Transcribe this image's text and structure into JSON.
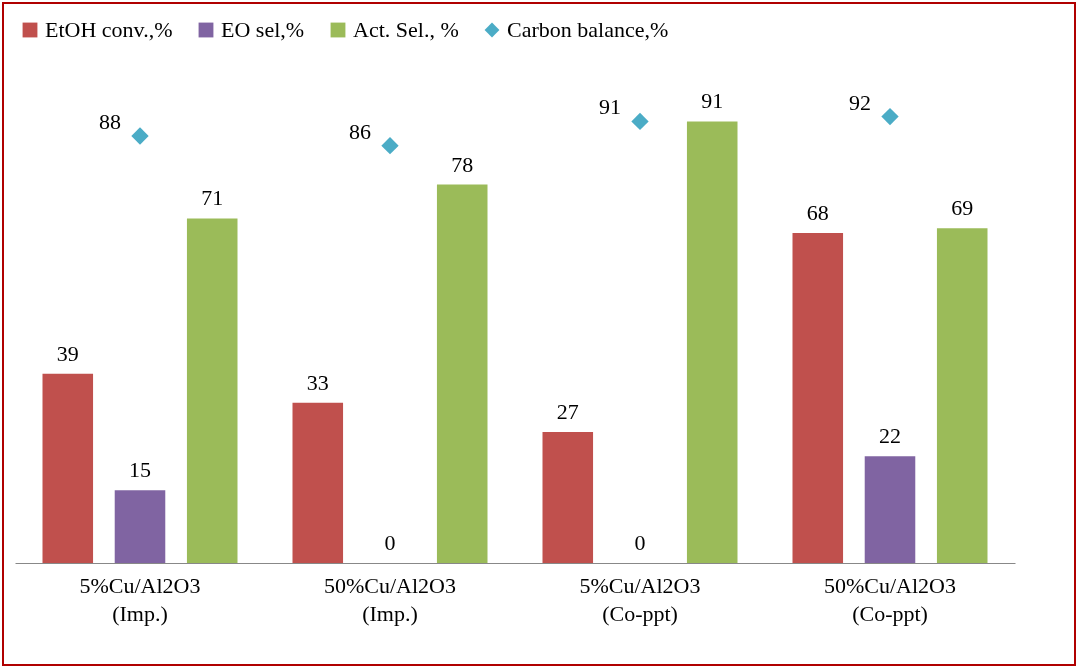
{
  "chart_data": {
    "type": "bar",
    "categories": [
      "5%Cu/Al2O3\n(Imp.)",
      "50%Cu/Al2O3\n(Imp.)",
      "5%Cu/Al2O3\n(Co-ppt)",
      "50%Cu/Al2O3\n(Co-ppt)"
    ],
    "series": [
      {
        "name": "EtOH conv.,%",
        "color": "#c0504d",
        "values": [
          39,
          33,
          27,
          68
        ]
      },
      {
        "name": "EO sel,%",
        "color": "#8064a2",
        "values": [
          15,
          0,
          0,
          22
        ]
      },
      {
        "name": "Act. Sel., %",
        "color": "#9bbb59",
        "values": [
          71,
          78,
          91,
          69
        ]
      },
      {
        "name": "Carbon balance,%",
        "color": "#4bacc6",
        "type": "scatter",
        "marker": "diamond",
        "values": [
          88,
          86,
          91,
          92
        ]
      }
    ],
    "data_labels": true,
    "legend": "top",
    "grid": false
  }
}
